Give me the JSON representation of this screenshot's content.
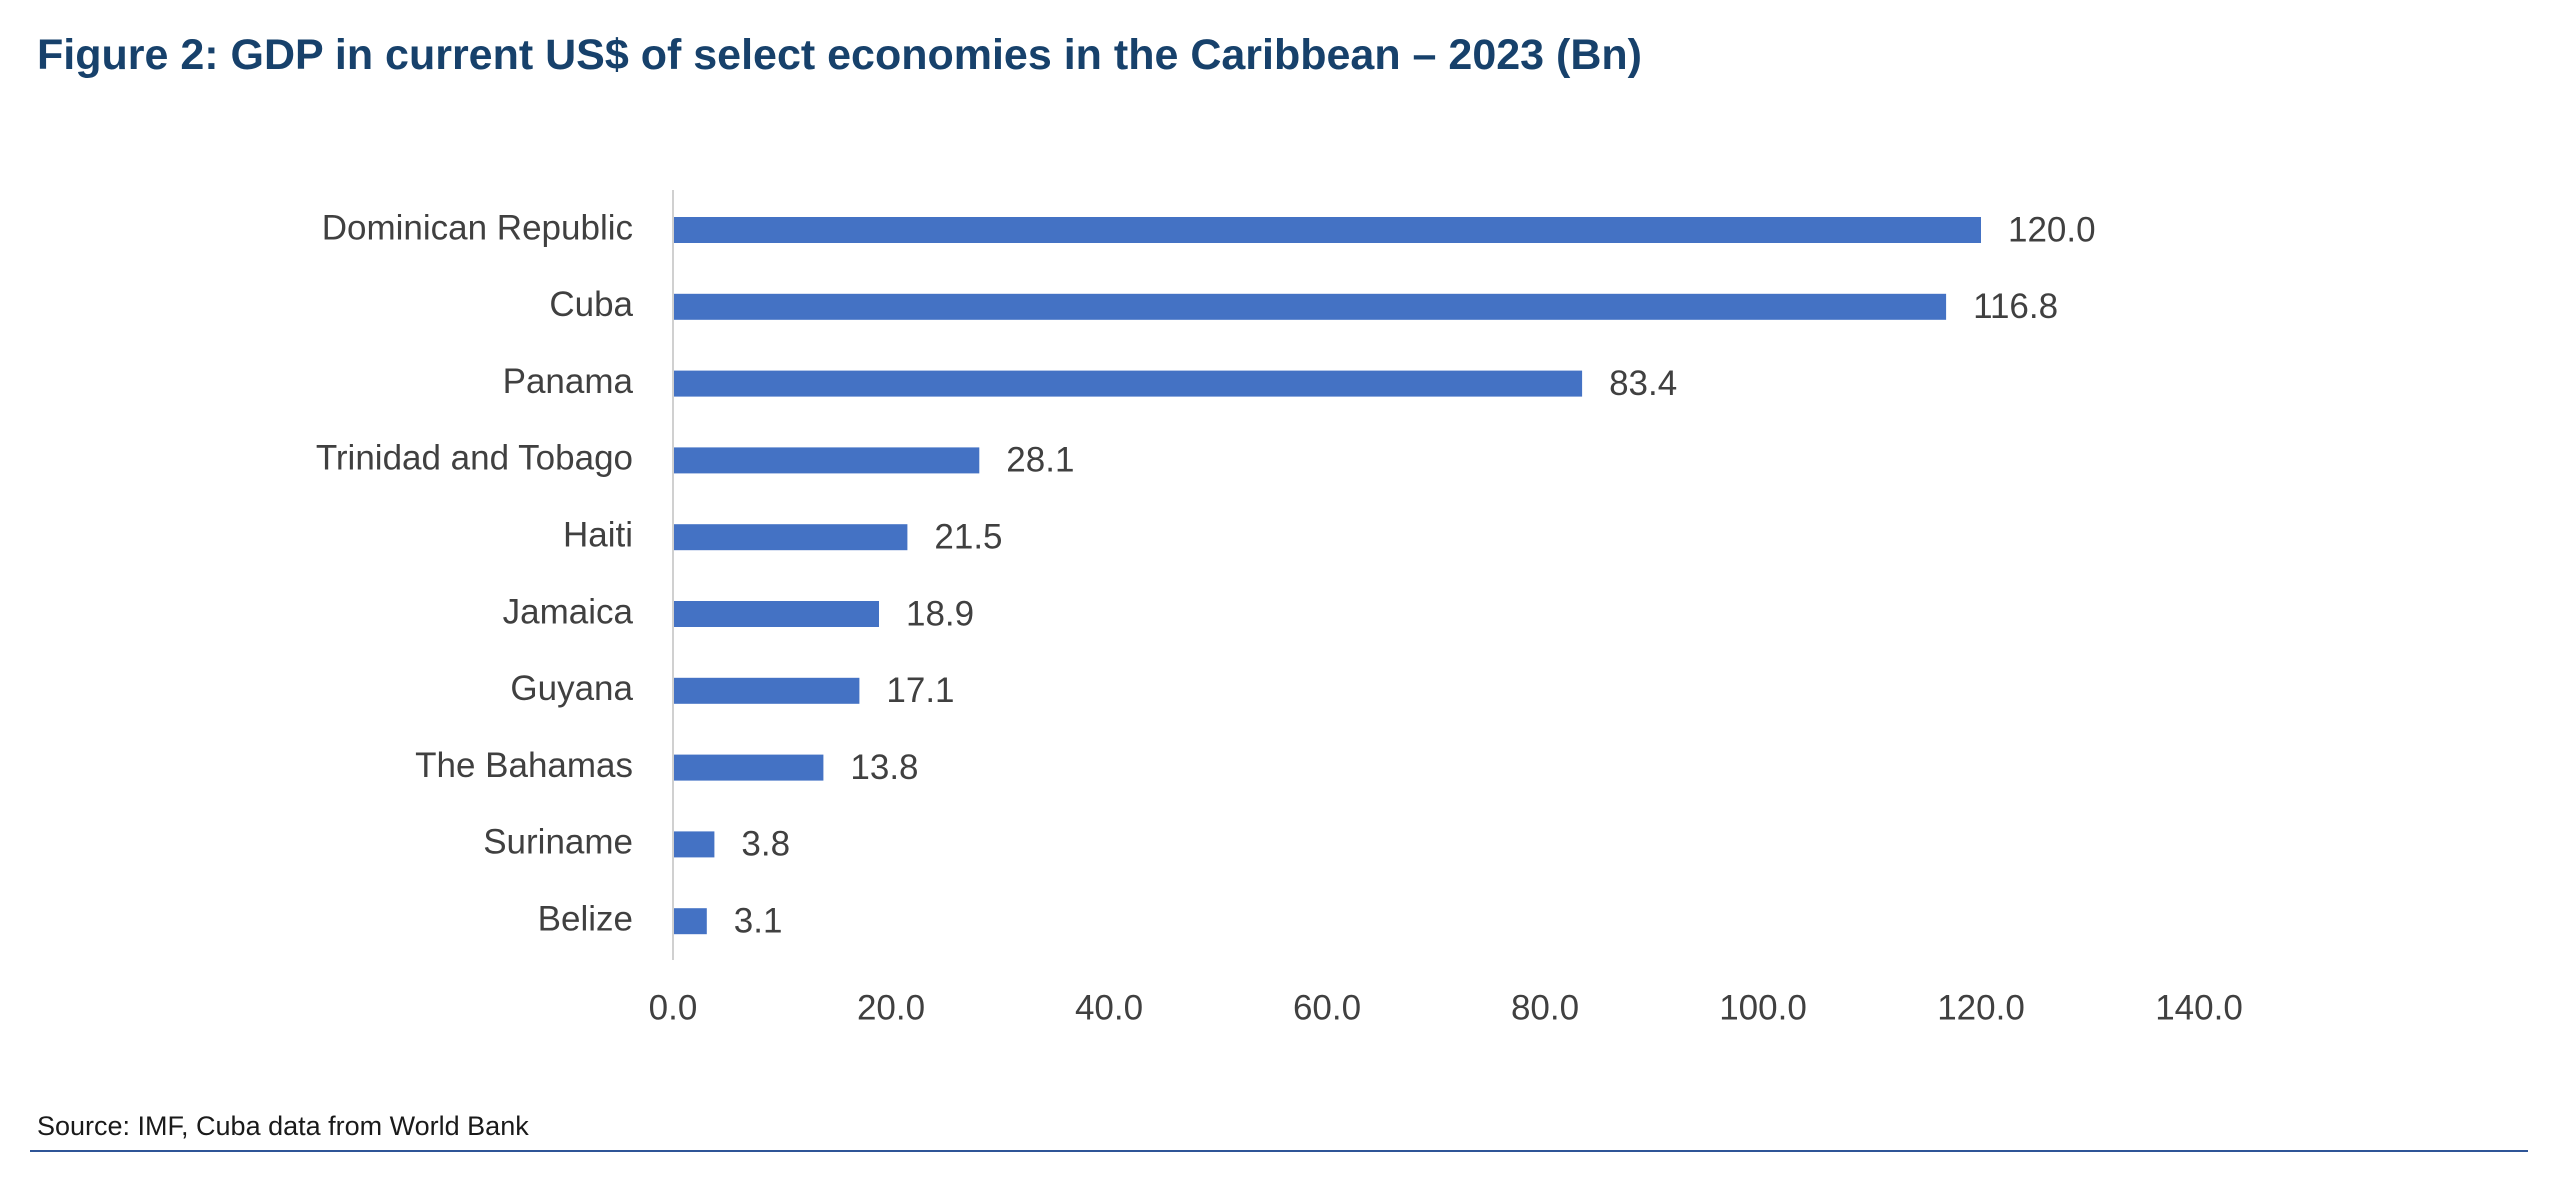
{
  "figure": {
    "title": "Figure 2: GDP in current US$ of select economies in the Caribbean – 2023 (Bn)",
    "source": "Source: IMF, Cuba data from World Bank"
  },
  "colors": {
    "bar": "#4472c4",
    "title": "#17416b",
    "axis": "#d0d0d0",
    "rule": "#2f5597"
  },
  "chart_data": {
    "type": "bar",
    "orientation": "horizontal",
    "title": "Figure 2: GDP in current US$ of select economies in the Caribbean – 2023 (Bn)",
    "xlabel": "",
    "ylabel": "",
    "categories": [
      "Dominican Republic",
      "Cuba",
      "Panama",
      "Trinidad and Tobago",
      "Haiti",
      "Jamaica",
      "Guyana",
      "The Bahamas",
      "Suriname",
      "Belize"
    ],
    "values": [
      120.0,
      116.8,
      83.4,
      28.1,
      21.5,
      18.9,
      17.1,
      13.8,
      3.8,
      3.1
    ],
    "xlim": [
      0,
      140
    ],
    "xticks": [
      0,
      20,
      40,
      60,
      80,
      100,
      120,
      140
    ],
    "grid": false,
    "legend": "none",
    "data_labels": true
  }
}
